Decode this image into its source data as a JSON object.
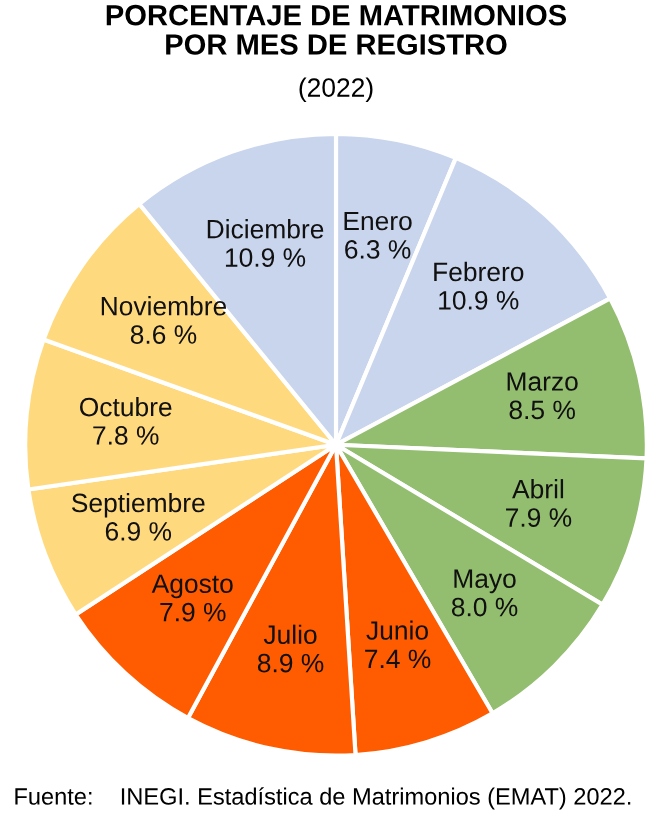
{
  "chart_data": {
    "type": "pie",
    "title": "PORCENTAJE DE MATRIMONIOS\nPOR MES DE REGISTRO",
    "subtitle": "(2022)",
    "categories": [
      "Enero",
      "Febrero",
      "Marzo",
      "Abril",
      "Mayo",
      "Junio",
      "Julio",
      "Agosto",
      "Septiembre",
      "Octubre",
      "Noviembre",
      "Diciembre"
    ],
    "values": [
      6.3,
      10.9,
      8.5,
      7.9,
      8.0,
      7.4,
      8.9,
      7.9,
      6.9,
      7.8,
      8.6,
      10.9
    ],
    "value_labels": [
      "6.3 %",
      "10.9 %",
      "8.5 %",
      "7.9 %",
      "8.0 %",
      "7.4 %",
      "8.9 %",
      "7.9 %",
      "6.9 %",
      "7.8 %",
      "8.6 %",
      "10.9 %"
    ],
    "colors": [
      "#c9d5ec",
      "#c9d5ec",
      "#93bd6f",
      "#93bd6f",
      "#93bd6f",
      "#ff5b00",
      "#ff5b00",
      "#ff5b00",
      "#ffd97d",
      "#ffd97d",
      "#ffd97d",
      "#c9d5ec"
    ],
    "annotations": [
      "Fuente:    INEGI. Estadística de Matrimonios (EMAT) 2022."
    ]
  }
}
